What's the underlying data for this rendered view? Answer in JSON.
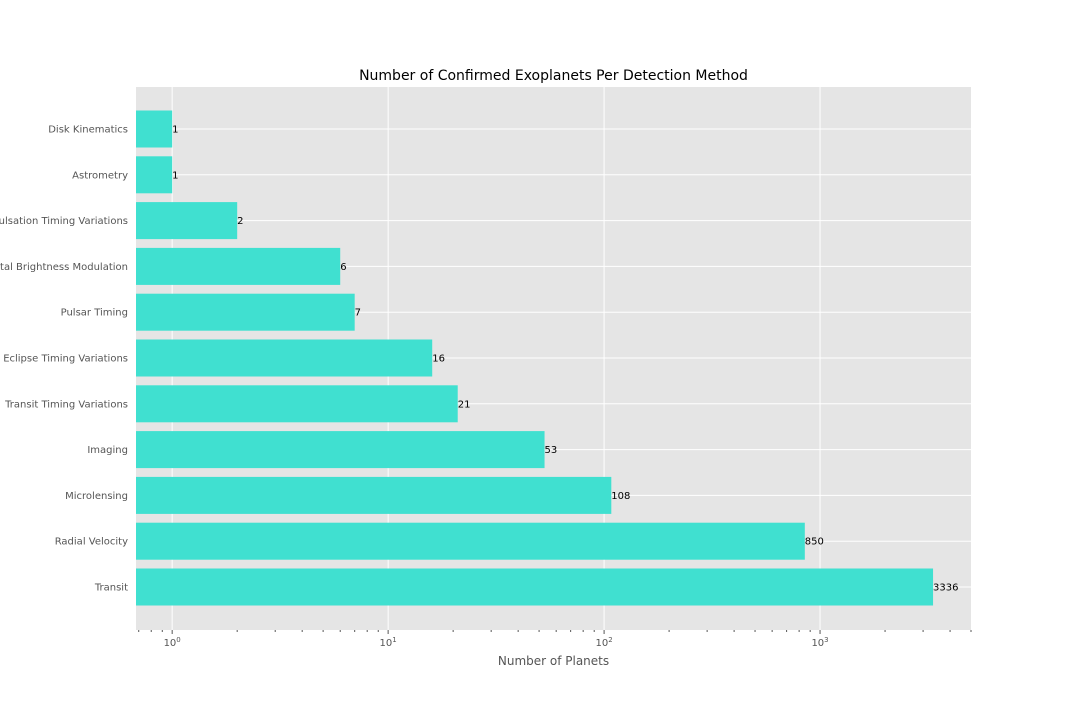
{
  "chart_data": {
    "type": "bar",
    "orientation": "horizontal",
    "title": "Number of Confirmed Exoplanets Per Detection Method",
    "xlabel": "Number of Planets",
    "ylabel": "",
    "xscale": "log",
    "xlim": [
      0.68,
      5000
    ],
    "grid": true,
    "legend": "none",
    "bar_color": "#40e0d0",
    "background_color": "#e5e5e5",
    "categories": [
      "Transit",
      "Radial Velocity",
      "Microlensing",
      "Imaging",
      "Transit Timing Variations",
      "Eclipse Timing Variations",
      "Pulsar Timing",
      "Orbital Brightness Modulation",
      "Pulsation Timing Variations",
      "Astrometry",
      "Disk Kinematics"
    ],
    "values": [
      3336,
      850,
      108,
      53,
      21,
      16,
      7,
      6,
      2,
      1,
      1
    ],
    "x_ticks": [
      {
        "base": "10",
        "exp": "0",
        "value": 1
      },
      {
        "base": "10",
        "exp": "1",
        "value": 10
      },
      {
        "base": "10",
        "exp": "2",
        "value": 100
      },
      {
        "base": "10",
        "exp": "3",
        "value": 1000
      }
    ]
  }
}
